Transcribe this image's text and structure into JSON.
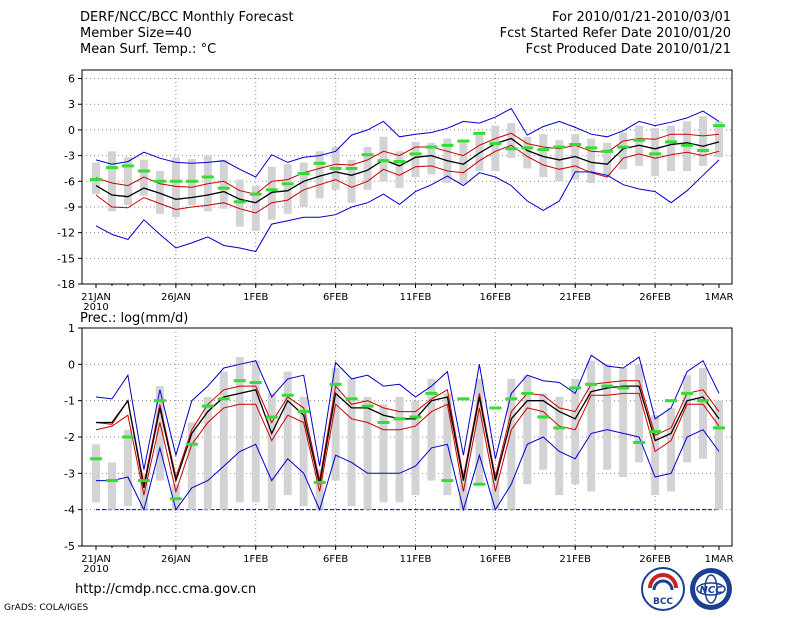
{
  "header": {
    "title": "DERF/NCC/BCC Monthly Forecast",
    "member_size": "Member Size=40",
    "variable": "Mean Surf. Temp.: °C",
    "period": "For 2010/01/21-2010/03/01",
    "started": "Fcst Started Refer Date 2010/01/20",
    "produced": "Fcst Produced Date 2010/01/21"
  },
  "footer": {
    "url": "http://cmdp.ncc.cma.gov.cn",
    "credit": "GrADS: COLA/IGES",
    "logo_bcc": "BCC",
    "logo_ncc": "NCC"
  },
  "colors": {
    "max_min": "#0000cc",
    "mean": "#000000",
    "spread": "#cc0000",
    "box": "#d3d3d6",
    "observed": "#33dd33",
    "grid": "#888888"
  },
  "chart_data": [
    {
      "type": "line",
      "title": "Mean Surf. Temp.: °C",
      "xlabel": "",
      "ylabel": "°C",
      "ylim": [
        -18,
        7
      ],
      "yticks": [
        6,
        3,
        0,
        -3,
        -6,
        -9,
        -12,
        -15,
        -18
      ],
      "xtick_labels": [
        "21JAN",
        "26JAN",
        "1FEB",
        "6FEB",
        "11FEB",
        "16FEB",
        "21FEB",
        "26FEB",
        "1MAR"
      ],
      "xtick_sub": "2010",
      "n_days": 40,
      "series": [
        {
          "name": "max",
          "values": [
            -3.5,
            -4.0,
            -3.7,
            -2.6,
            -3.3,
            -3.8,
            -3.9,
            -3.8,
            -3.6,
            -4.6,
            -5.5,
            -2.9,
            -3.8,
            -3.2,
            -3.0,
            -2.5,
            -0.6,
            0.0,
            1.0,
            -0.8,
            -0.5,
            -0.3,
            0.2,
            1.0,
            0.8,
            1.5,
            2.5,
            -0.6,
            0.4,
            1.0,
            0.3,
            -0.5,
            -0.8,
            -0.1,
            1.0,
            0.5,
            0.9,
            1.4,
            2.2,
            1.0
          ]
        },
        {
          "name": "spread_upper",
          "values": [
            -5.6,
            -6.2,
            -6.5,
            -5.5,
            -6.3,
            -6.6,
            -6.7,
            -6.3,
            -6.0,
            -7.1,
            -7.5,
            -6.0,
            -5.8,
            -5.0,
            -4.5,
            -4.0,
            -4.1,
            -3.5,
            -2.5,
            -3.0,
            -2.0,
            -2.0,
            -2.5,
            -3.0,
            -1.8,
            -1.0,
            -0.4,
            -1.6,
            -2.0,
            -2.2,
            -1.8,
            -2.5,
            -2.6,
            -1.3,
            -1.0,
            -1.1,
            -0.5,
            -0.5,
            -0.7,
            -0.5
          ]
        },
        {
          "name": "ensemble_mean",
          "values": [
            -6.5,
            -7.6,
            -7.8,
            -6.8,
            -7.4,
            -8.1,
            -7.9,
            -7.6,
            -7.2,
            -8.1,
            -8.5,
            -7.3,
            -7.1,
            -6.0,
            -5.4,
            -4.9,
            -5.3,
            -4.7,
            -3.5,
            -4.2,
            -3.2,
            -3.0,
            -3.6,
            -4.0,
            -2.7,
            -1.6,
            -1.0,
            -2.4,
            -3.1,
            -3.5,
            -3.1,
            -3.8,
            -4.0,
            -2.2,
            -1.8,
            -2.2,
            -1.7,
            -1.5,
            -1.9,
            -1.4
          ]
        },
        {
          "name": "spread_lower",
          "values": [
            -7.6,
            -9.0,
            -9.1,
            -7.9,
            -8.6,
            -9.3,
            -9.0,
            -8.8,
            -8.5,
            -9.2,
            -9.7,
            -8.5,
            -8.2,
            -7.0,
            -6.4,
            -5.8,
            -6.7,
            -6.0,
            -4.6,
            -5.3,
            -4.3,
            -4.2,
            -4.8,
            -5.0,
            -3.6,
            -2.5,
            -1.8,
            -3.1,
            -4.1,
            -4.6,
            -4.2,
            -5.0,
            -5.5,
            -3.3,
            -2.8,
            -3.3,
            -2.9,
            -2.6,
            -3.0,
            -2.5
          ]
        },
        {
          "name": "min",
          "values": [
            -11.2,
            -12.2,
            -12.8,
            -10.5,
            -12.2,
            -13.8,
            -13.2,
            -12.5,
            -13.5,
            -13.8,
            -14.2,
            -11.0,
            -10.6,
            -10.2,
            -10.2,
            -9.9,
            -9.0,
            -8.5,
            -7.5,
            -8.7,
            -7.2,
            -6.4,
            -5.4,
            -6.5,
            -5.0,
            -5.5,
            -6.5,
            -8.3,
            -9.4,
            -8.3,
            -4.9,
            -4.9,
            -5.3,
            -6.4,
            -6.9,
            -7.2,
            -8.5,
            -7.1,
            -5.3,
            -3.5
          ]
        },
        {
          "name": "observed",
          "values": [
            -5.8,
            -4.4,
            -4.2,
            -4.8,
            -6.0,
            -6.0,
            -6.0,
            -5.5,
            -6.8,
            -8.4,
            -7.5,
            -7.0,
            -6.3,
            -5.1,
            -3.9,
            -4.5,
            -4.5,
            -2.9,
            -3.6,
            -3.7,
            -2.8,
            -2.0,
            -1.8,
            -1.3,
            -0.4,
            -1.6,
            -2.2,
            -2.1,
            -2.3,
            -2.0,
            -1.7,
            -2.1,
            -2.5,
            -2.0,
            -1.2,
            -2.8,
            -1.4,
            -1.8,
            -2.4,
            0.5
          ]
        }
      ],
      "boxes": {
        "upper": [
          -3.8,
          -2.5,
          -3.2,
          -3.5,
          -4.8,
          -3.2,
          -3.4,
          -3.0,
          -3.5,
          -5.8,
          -6.5,
          -4.3,
          -4.0,
          -3.8,
          -2.5,
          -2.0,
          -3.5,
          -2.0,
          -0.8,
          -2.5,
          -1.4,
          -1.5,
          -1.0,
          -1.5,
          -0.5,
          0.5,
          0.8,
          -0.8,
          -0.5,
          -1.2,
          -0.5,
          -1.0,
          -1.5,
          -0.3,
          0.5,
          0.2,
          0.5,
          1.0,
          1.6,
          1.0
        ],
        "lower": [
          -7.5,
          -9.5,
          -8.8,
          -7.7,
          -9.8,
          -10.2,
          -8.8,
          -9.5,
          -9.2,
          -11.3,
          -11.8,
          -10.5,
          -9.8,
          -9.0,
          -8.0,
          -7.0,
          -8.5,
          -7.0,
          -6.0,
          -6.8,
          -5.5,
          -5.2,
          -6.2,
          -6.3,
          -4.8,
          -4.8,
          -3.3,
          -4.5,
          -5.5,
          -6.0,
          -5.8,
          -6.2,
          -5.5,
          -4.6,
          -4.2,
          -5.4,
          -4.8,
          -4.8,
          -4.2,
          -3.2
        ]
      }
    },
    {
      "type": "line",
      "title": "Prec.: log(mm/d)",
      "xlabel": "",
      "ylabel": "log(mm/d)",
      "ylim": [
        -5,
        1
      ],
      "yticks": [
        1,
        0,
        -1,
        -2,
        -3,
        -4,
        -5
      ],
      "xtick_labels": [
        "21JAN",
        "26JAN",
        "1FEB",
        "6FEB",
        "11FEB",
        "16FEB",
        "21FEB",
        "26FEB",
        "1MAR"
      ],
      "xtick_sub": "2010",
      "n_days": 40,
      "series": [
        {
          "name": "max",
          "values": [
            -0.9,
            -0.95,
            -0.3,
            -2.9,
            -0.7,
            -2.5,
            -1.0,
            -0.6,
            -0.1,
            0.0,
            0.1,
            -0.9,
            -0.4,
            -0.3,
            -2.8,
            0.05,
            -0.4,
            -0.3,
            -0.6,
            -0.55,
            -0.9,
            -0.6,
            -0.2,
            -2.5,
            0.0,
            -2.6,
            -0.8,
            -0.3,
            -0.45,
            -0.5,
            -0.8,
            0.25,
            -0.05,
            -0.1,
            0.2,
            -1.5,
            -1.2,
            -0.2,
            0.1,
            -0.8
          ]
        },
        {
          "name": "spread_upper",
          "values": [
            -1.6,
            -1.65,
            -1.0,
            -3.3,
            -1.1,
            -3.1,
            -1.8,
            -1.1,
            -0.7,
            -0.6,
            -0.6,
            -1.6,
            -0.9,
            -1.2,
            -3.2,
            -0.6,
            -1.1,
            -1.0,
            -1.2,
            -1.3,
            -1.3,
            -0.95,
            -0.7,
            -3.1,
            -0.8,
            -3.1,
            -1.3,
            -0.8,
            -0.85,
            -1.2,
            -1.3,
            -0.55,
            -0.5,
            -0.45,
            -0.45,
            -1.95,
            -1.75,
            -0.8,
            -0.7,
            -1.3
          ]
        },
        {
          "name": "ensemble_mean",
          "values": [
            -1.6,
            -1.6,
            -1.0,
            -3.4,
            -1.2,
            -3.2,
            -1.9,
            -1.3,
            -0.9,
            -0.8,
            -0.7,
            -1.9,
            -1.0,
            -1.4,
            -3.3,
            -0.8,
            -1.2,
            -1.2,
            -1.4,
            -1.5,
            -1.5,
            -1.0,
            -0.9,
            -3.2,
            -0.9,
            -3.2,
            -1.5,
            -1.0,
            -1.0,
            -1.3,
            -1.5,
            -0.75,
            -0.65,
            -0.6,
            -0.6,
            -2.1,
            -1.9,
            -1.0,
            -0.9,
            -1.5
          ]
        },
        {
          "name": "spread_lower",
          "values": [
            -1.8,
            -1.7,
            -1.4,
            -3.6,
            -1.6,
            -3.5,
            -2.2,
            -1.6,
            -1.2,
            -1.1,
            -1.1,
            -2.1,
            -1.4,
            -1.6,
            -3.5,
            -1.1,
            -1.5,
            -1.6,
            -1.8,
            -1.8,
            -1.7,
            -1.3,
            -1.1,
            -3.5,
            -1.2,
            -3.5,
            -1.8,
            -1.2,
            -1.3,
            -1.7,
            -1.8,
            -0.85,
            -0.85,
            -0.8,
            -0.8,
            -2.4,
            -2.1,
            -1.1,
            -1.1,
            -1.7
          ]
        },
        {
          "name": "min",
          "values": [
            -3.2,
            -3.2,
            -3.1,
            -4.0,
            -2.3,
            -4.0,
            -3.4,
            -3.2,
            -2.8,
            -2.4,
            -2.2,
            -3.2,
            -2.6,
            -3.0,
            -4.0,
            -2.5,
            -2.7,
            -3.0,
            -3.0,
            -3.0,
            -2.8,
            -2.3,
            -2.2,
            -4.0,
            -2.5,
            -4.0,
            -3.3,
            -2.2,
            -2.0,
            -2.4,
            -2.6,
            -1.9,
            -1.8,
            -1.9,
            -2.0,
            -3.1,
            -3.0,
            -2.0,
            -1.8,
            -2.4
          ]
        },
        {
          "name": "observed",
          "values": [
            -2.6,
            -3.2,
            -2.0,
            -3.2,
            -1.0,
            -3.7,
            -2.2,
            -1.15,
            -0.95,
            -0.45,
            -0.5,
            -1.45,
            -0.85,
            -1.3,
            -3.25,
            -0.55,
            -0.95,
            -1.15,
            -1.6,
            -1.5,
            -1.45,
            -0.8,
            -3.2,
            -0.95,
            -3.3,
            -1.2,
            -0.95,
            -0.8,
            -1.45,
            -1.75,
            -0.65,
            -0.55,
            -0.6,
            -0.65,
            -2.15,
            -1.85,
            -1.0,
            -0.8,
            -1.0,
            -1.75
          ]
        }
      ],
      "boxes": {
        "upper": [
          -2.2,
          -2.7,
          -1.8,
          -3.0,
          -0.6,
          -3.3,
          -1.6,
          -0.9,
          -0.2,
          0.2,
          0.1,
          -0.8,
          -0.2,
          -0.9,
          -2.9,
          -0.1,
          -0.4,
          -0.9,
          -1.1,
          -0.9,
          -1.0,
          -0.4,
          -0.8,
          -2.9,
          -0.4,
          -3.0,
          -0.4,
          -0.3,
          -0.8,
          -0.9,
          -0.4,
          0.1,
          0.0,
          -0.1,
          0.0,
          -1.4,
          -1.2,
          -0.3,
          -0.1,
          -1.0
        ],
        "lower": [
          -3.8,
          -4.0,
          -3.9,
          -4.0,
          -3.2,
          -4.0,
          -4.0,
          -4.0,
          -4.0,
          -3.8,
          -3.8,
          -4.0,
          -3.6,
          -3.9,
          -4.0,
          -3.2,
          -3.9,
          -4.0,
          -3.8,
          -3.8,
          -3.6,
          -3.2,
          -3.6,
          -4.0,
          -3.3,
          -4.0,
          -4.0,
          -3.3,
          -2.9,
          -3.6,
          -3.3,
          -3.5,
          -2.9,
          -3.1,
          -2.7,
          -3.6,
          -3.5,
          -2.7,
          -2.6,
          -4.0
        ]
      }
    }
  ]
}
